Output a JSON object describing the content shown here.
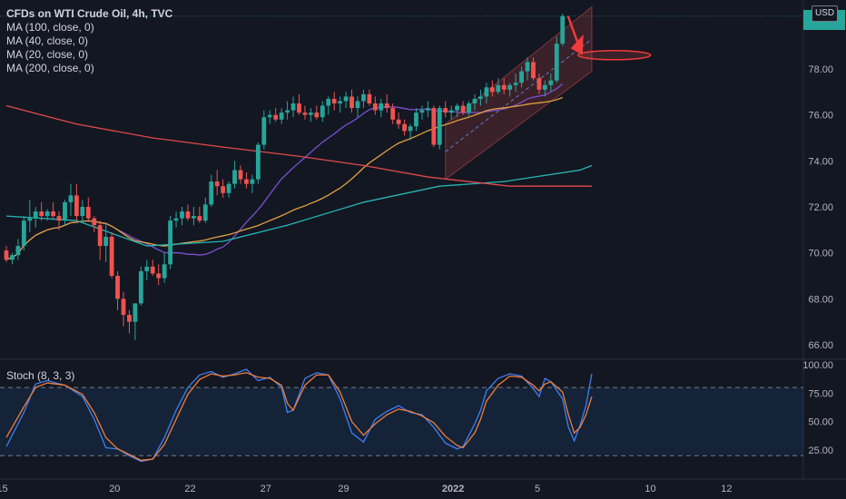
{
  "legend": {
    "title": "CFDs on WTI Crude Oil, 4h, TVC",
    "ma100": "MA (100, close, 0)",
    "ma40": "MA (40, close, 0)",
    "ma20": "MA (20, close, 0)",
    "ma200": "MA (200, close, 0)"
  },
  "stoch_label": "Stoch (8, 3, 3)",
  "currency": "USD",
  "colors": {
    "up": "#26a69a",
    "down": "#ef5350",
    "background": "#131722",
    "ma20": "#7b4fd0",
    "ma40": "#e0a040",
    "ma100": "#26b5b5",
    "ma200": "#e04a4a",
    "stoch_k": "#3f7ef5",
    "stoch_d": "#f07d3a"
  },
  "chart_data": [
    {
      "type": "candlestick",
      "title": "CFDs on WTI Crude Oil, 4h, TVC",
      "ylim": [
        65.5,
        80.8
      ],
      "y_ticks": [
        "66.00",
        "68.00",
        "70.00",
        "72.00",
        "74.00",
        "76.00",
        "78.00"
      ],
      "x_ticks": [
        "15",
        "20",
        "22",
        "27",
        "29",
        "2022",
        "5",
        "10",
        "12"
      ],
      "candles": [
        [
          70.1,
          70.3,
          69.6,
          69.7
        ],
        [
          69.7,
          70.0,
          69.5,
          69.9
        ],
        [
          69.9,
          70.6,
          69.7,
          70.3
        ],
        [
          70.3,
          71.6,
          70.1,
          71.4
        ],
        [
          71.4,
          72.3,
          70.9,
          71.5
        ],
        [
          71.5,
          72.0,
          71.1,
          71.8
        ],
        [
          71.8,
          72.2,
          71.4,
          71.6
        ],
        [
          71.6,
          71.9,
          71.4,
          71.8
        ],
        [
          71.8,
          72.2,
          71.5,
          71.6
        ],
        [
          71.6,
          71.8,
          71.0,
          71.4
        ],
        [
          71.4,
          72.3,
          71.2,
          72.2
        ],
        [
          72.2,
          73.0,
          71.6,
          72.5
        ],
        [
          72.5,
          73.0,
          71.4,
          71.6
        ],
        [
          71.6,
          72.3,
          71.3,
          72.0
        ],
        [
          72.0,
          72.4,
          71.4,
          71.5
        ],
        [
          71.5,
          71.6,
          70.9,
          71.2
        ],
        [
          71.2,
          71.4,
          69.7,
          70.3
        ],
        [
          70.3,
          71.3,
          69.6,
          70.7
        ],
        [
          70.7,
          70.9,
          68.9,
          69.0
        ],
        [
          69.0,
          69.2,
          67.5,
          68.0
        ],
        [
          68.0,
          68.3,
          66.8,
          67.3
        ],
        [
          67.3,
          67.5,
          66.5,
          67.0
        ],
        [
          67.0,
          67.8,
          66.2,
          67.8
        ],
        [
          67.8,
          69.4,
          67.7,
          69.2
        ],
        [
          69.2,
          69.7,
          68.8,
          69.4
        ],
        [
          69.4,
          69.7,
          69.0,
          69.1
        ],
        [
          69.1,
          69.5,
          68.6,
          68.9
        ],
        [
          68.9,
          70.0,
          68.7,
          69.5
        ],
        [
          69.5,
          71.6,
          69.3,
          71.4
        ],
        [
          71.4,
          71.8,
          71.1,
          71.5
        ],
        [
          71.5,
          72.0,
          71.2,
          71.8
        ],
        [
          71.8,
          72.1,
          71.4,
          71.5
        ],
        [
          71.5,
          72.0,
          71.2,
          71.6
        ],
        [
          71.6,
          72.0,
          71.3,
          71.4
        ],
        [
          71.4,
          72.4,
          71.3,
          72.1
        ],
        [
          72.1,
          73.4,
          72.0,
          73.1
        ],
        [
          73.1,
          73.6,
          72.5,
          72.9
        ],
        [
          72.9,
          73.2,
          72.4,
          72.6
        ],
        [
          72.6,
          73.1,
          72.4,
          73.0
        ],
        [
          73.0,
          74.0,
          72.8,
          73.6
        ],
        [
          73.6,
          73.8,
          73.0,
          73.2
        ],
        [
          73.2,
          73.5,
          72.8,
          73.0
        ],
        [
          73.0,
          73.4,
          72.6,
          73.2
        ],
        [
          73.2,
          74.8,
          73.0,
          74.7
        ],
        [
          74.7,
          76.2,
          74.5,
          75.9
        ],
        [
          75.9,
          76.2,
          75.6,
          76.0
        ],
        [
          76.0,
          76.3,
          75.7,
          75.8
        ],
        [
          75.8,
          76.3,
          75.6,
          76.1
        ],
        [
          76.1,
          76.6,
          75.8,
          76.2
        ],
        [
          76.2,
          76.8,
          75.9,
          76.5
        ],
        [
          76.5,
          76.9,
          76.0,
          76.1
        ],
        [
          76.1,
          76.4,
          75.8,
          76.0
        ],
        [
          76.0,
          76.3,
          75.7,
          76.1
        ],
        [
          76.1,
          76.4,
          75.8,
          75.9
        ],
        [
          75.9,
          76.6,
          75.7,
          76.4
        ],
        [
          76.4,
          76.8,
          76.0,
          76.7
        ],
        [
          76.7,
          77.0,
          76.2,
          76.5
        ],
        [
          76.5,
          76.8,
          76.1,
          76.6
        ],
        [
          76.6,
          77.0,
          76.3,
          76.8
        ],
        [
          76.8,
          77.1,
          76.1,
          76.3
        ],
        [
          76.3,
          76.8,
          75.9,
          76.6
        ],
        [
          76.6,
          77.1,
          76.3,
          76.9
        ],
        [
          76.9,
          77.1,
          76.4,
          76.5
        ],
        [
          76.5,
          76.8,
          76.0,
          76.2
        ],
        [
          76.2,
          76.7,
          75.9,
          76.5
        ],
        [
          76.5,
          76.9,
          76.1,
          76.3
        ],
        [
          76.3,
          76.5,
          75.6,
          75.8
        ],
        [
          75.8,
          76.1,
          75.4,
          75.6
        ],
        [
          75.6,
          75.8,
          75.1,
          75.3
        ],
        [
          75.3,
          75.6,
          74.9,
          75.5
        ],
        [
          75.5,
          76.3,
          75.3,
          76.1
        ],
        [
          76.1,
          76.4,
          75.8,
          76.2
        ],
        [
          76.2,
          76.6,
          75.9,
          76.3
        ],
        [
          76.3,
          76.4,
          74.6,
          74.7
        ],
        [
          74.7,
          76.4,
          74.5,
          76.3
        ],
        [
          76.3,
          76.6,
          75.9,
          76.1
        ],
        [
          76.1,
          76.4,
          75.8,
          76.2
        ],
        [
          76.2,
          76.5,
          75.9,
          76.4
        ],
        [
          76.4,
          76.6,
          76.0,
          76.1
        ],
        [
          76.1,
          76.6,
          75.9,
          76.5
        ],
        [
          76.5,
          76.9,
          76.2,
          76.7
        ],
        [
          76.7,
          77.1,
          76.4,
          76.8
        ],
        [
          76.8,
          77.4,
          76.5,
          77.2
        ],
        [
          77.2,
          77.5,
          76.8,
          77.0
        ],
        [
          77.0,
          77.6,
          76.9,
          77.3
        ],
        [
          77.3,
          77.6,
          76.9,
          77.1
        ],
        [
          77.1,
          77.4,
          76.8,
          77.3
        ],
        [
          77.3,
          77.8,
          77.0,
          77.4
        ],
        [
          77.4,
          78.1,
          77.2,
          77.9
        ],
        [
          77.9,
          78.5,
          77.5,
          78.3
        ],
        [
          78.3,
          78.5,
          77.5,
          77.6
        ],
        [
          77.6,
          77.8,
          76.9,
          77.1
        ],
        [
          77.1,
          77.5,
          76.8,
          77.3
        ],
        [
          77.3,
          77.8,
          77.0,
          77.5
        ],
        [
          77.5,
          79.4,
          77.4,
          79.1
        ],
        [
          79.1,
          80.4,
          79.0,
          80.3
        ]
      ],
      "moving_averages": [
        {
          "name": "MA (20, close, 0)",
          "period": 20,
          "color": "#7b4fd0"
        },
        {
          "name": "MA (40, close, 0)",
          "period": 40,
          "color": "#e0a040"
        },
        {
          "name": "MA (100, close, 0)",
          "period": 100,
          "color": "#26b5b5",
          "points": [
            [
              0,
              71.6
            ],
            [
              12,
              71.4
            ],
            [
              24,
              70.3
            ],
            [
              37,
              70.5
            ],
            [
              48,
              71.2
            ],
            [
              61,
              72.2
            ],
            [
              74,
              72.9
            ],
            [
              85,
              73.1
            ],
            [
              98,
              73.6
            ],
            [
              100,
              73.8
            ]
          ]
        },
        {
          "name": "MA (200, close, 0)",
          "period": 200,
          "color": "#e04a4a",
          "points": [
            [
              0,
              76.4
            ],
            [
              12,
              75.6
            ],
            [
              25,
              75.0
            ],
            [
              37,
              74.6
            ],
            [
              50,
              74.2
            ],
            [
              61,
              73.8
            ],
            [
              72,
              73.3
            ],
            [
              86,
              72.9
            ],
            [
              100,
              72.9
            ]
          ]
        }
      ],
      "channel": {
        "lower_start": [
          75,
          73.2
        ],
        "lower_end": [
          100,
          77.9
        ],
        "upper_start": [
          75,
          75.6
        ],
        "upper_end": [
          100,
          80.7
        ]
      },
      "current_price_label": "80.3"
    },
    {
      "type": "line",
      "title": "Stoch (8, 3, 3)",
      "ylim": [
        10,
        100
      ],
      "y_ticks": [
        "100.00",
        "75.00",
        "50.00",
        "25.00"
      ],
      "band": [
        20,
        80
      ],
      "series": [
        {
          "name": "%K",
          "color": "#3f7ef5",
          "points": [
            [
              0,
              28
            ],
            [
              3,
              58
            ],
            [
              5,
              83
            ],
            [
              7,
              86
            ],
            [
              10,
              82
            ],
            [
              13,
              72
            ],
            [
              15,
              52
            ],
            [
              17,
              27
            ],
            [
              19,
              26
            ],
            [
              21,
              20
            ],
            [
              23,
              15
            ],
            [
              25,
              17
            ],
            [
              27,
              36
            ],
            [
              29,
              60
            ],
            [
              31,
              80
            ],
            [
              33,
              91
            ],
            [
              35,
              94
            ],
            [
              37,
              89
            ],
            [
              39,
              92
            ],
            [
              41,
              96
            ],
            [
              43,
              86
            ],
            [
              45,
              89
            ],
            [
              47,
              80
            ],
            [
              48,
              58
            ],
            [
              49,
              60
            ],
            [
              51,
              88
            ],
            [
              53,
              93
            ],
            [
              55,
              91
            ],
            [
              57,
              70
            ],
            [
              59,
              40
            ],
            [
              61,
              32
            ],
            [
              63,
              52
            ],
            [
              65,
              59
            ],
            [
              67,
              64
            ],
            [
              69,
              58
            ],
            [
              71,
              56
            ],
            [
              73,
              45
            ],
            [
              75,
              31
            ],
            [
              77,
              26
            ],
            [
              78,
              28
            ],
            [
              80,
              48
            ],
            [
              81,
              60
            ],
            [
              82,
              77
            ],
            [
              84,
              88
            ],
            [
              86,
              92
            ],
            [
              88,
              90
            ],
            [
              90,
              79
            ],
            [
              91,
              72
            ],
            [
              92,
              88
            ],
            [
              93,
              85
            ],
            [
              95,
              70
            ],
            [
              96,
              45
            ],
            [
              97,
              33
            ],
            [
              98,
              47
            ],
            [
              99,
              64
            ],
            [
              100,
              92
            ]
          ]
        },
        {
          "name": "%D",
          "color": "#f07d3a",
          "points": [
            [
              0,
              36
            ],
            [
              3,
              63
            ],
            [
              5,
              80
            ],
            [
              7,
              84
            ],
            [
              10,
              82
            ],
            [
              13,
              74
            ],
            [
              15,
              58
            ],
            [
              17,
              36
            ],
            [
              19,
              26
            ],
            [
              21,
              21
            ],
            [
              23,
              16
            ],
            [
              25,
              17
            ],
            [
              27,
              30
            ],
            [
              29,
              52
            ],
            [
              31,
              74
            ],
            [
              33,
              87
            ],
            [
              35,
              92
            ],
            [
              37,
              90
            ],
            [
              39,
              91
            ],
            [
              41,
              93
            ],
            [
              43,
              89
            ],
            [
              45,
              88
            ],
            [
              47,
              82
            ],
            [
              48,
              66
            ],
            [
              49,
              60
            ],
            [
              51,
              82
            ],
            [
              53,
              91
            ],
            [
              55,
              91
            ],
            [
              57,
              76
            ],
            [
              59,
              50
            ],
            [
              61,
              38
            ],
            [
              63,
              48
            ],
            [
              65,
              56
            ],
            [
              67,
              61
            ],
            [
              69,
              59
            ],
            [
              71,
              55
            ],
            [
              73,
              49
            ],
            [
              75,
              37
            ],
            [
              77,
              29
            ],
            [
              78,
              27
            ],
            [
              80,
              40
            ],
            [
              81,
              52
            ],
            [
              82,
              68
            ],
            [
              84,
              82
            ],
            [
              86,
              90
            ],
            [
              88,
              89
            ],
            [
              90,
              82
            ],
            [
              91,
              77
            ],
            [
              92,
              83
            ],
            [
              93,
              85
            ],
            [
              95,
              76
            ],
            [
              96,
              56
            ],
            [
              97,
              40
            ],
            [
              98,
              45
            ],
            [
              99,
              56
            ],
            [
              100,
              72
            ]
          ]
        }
      ]
    }
  ]
}
